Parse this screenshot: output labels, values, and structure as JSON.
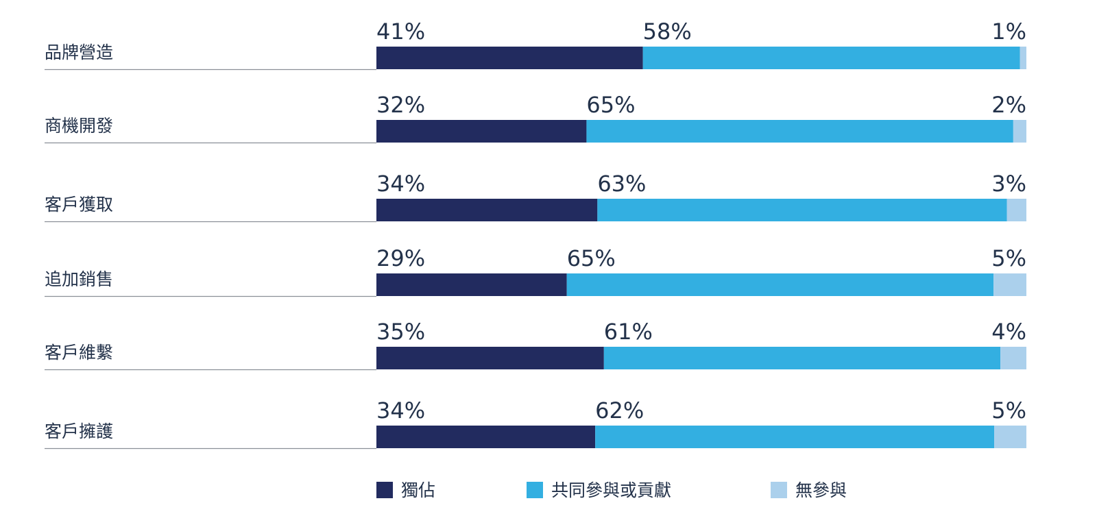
{
  "chart_data": {
    "type": "bar",
    "orientation": "horizontal",
    "stacked": true,
    "normalized": true,
    "categories": [
      "品牌營造",
      "商機開發",
      "客戶獲取",
      "追加銷售",
      "客戶維繫",
      "客戶擁護"
    ],
    "series": [
      {
        "name": "獨佔",
        "color": "#222b5f",
        "values": [
          41,
          32,
          34,
          29,
          35,
          34
        ]
      },
      {
        "name": "共同參與或貢獻",
        "color": "#33afe1",
        "values": [
          58,
          65,
          63,
          65,
          61,
          62
        ]
      },
      {
        "name": "無參與",
        "color": "#abd0ec",
        "values": [
          1,
          2,
          3,
          5,
          4,
          5
        ]
      }
    ],
    "data_labels": [
      [
        "41%",
        "58%",
        "1%"
      ],
      [
        "32%",
        "65%",
        "2%"
      ],
      [
        "34%",
        "63%",
        "3%"
      ],
      [
        "29%",
        "65%",
        "5%"
      ],
      [
        "35%",
        "61%",
        "4%"
      ],
      [
        "34%",
        "62%",
        "5%"
      ]
    ],
    "value_unit": "%",
    "legend_position": "bottom",
    "grid": false
  }
}
